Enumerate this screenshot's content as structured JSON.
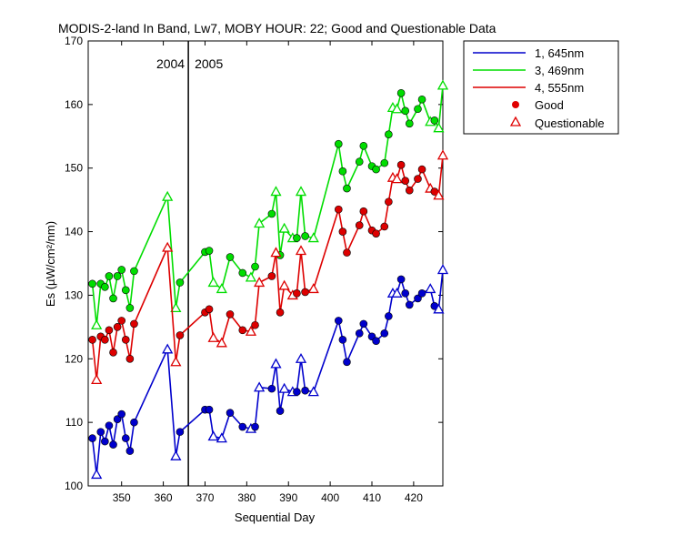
{
  "chart_data": {
    "type": "line",
    "title": "MODIS-2-land In Band,  Lw7, MOBY HOUR: 22;  Good and Questionable Data",
    "xlabel": "Sequential Day",
    "ylabel": "Es (µW/cm²/nm)",
    "xlim": [
      342,
      427
    ],
    "ylim": [
      100,
      170
    ],
    "xticks": [
      350,
      360,
      370,
      380,
      390,
      400,
      410,
      420
    ],
    "yticks": [
      100,
      110,
      120,
      130,
      140,
      150,
      160,
      170
    ],
    "x_tick_labels": [
      "350",
      "360",
      "370",
      "380",
      "390",
      "400",
      "410",
      "420"
    ],
    "y_tick_labels": [
      "100",
      "110",
      "120",
      "130",
      "140",
      "150",
      "160",
      "170"
    ],
    "grid": false,
    "legend_position": "outside-top-right",
    "year_boundary": {
      "x": 366,
      "left_label": "2004",
      "right_label": "2005"
    },
    "legend": {
      "series": [
        "1, 645nm",
        "3, 469nm",
        "4, 555nm"
      ],
      "good_label": "Good",
      "questionable_label": "Questionable",
      "marker_color": "#e00000"
    },
    "x": [
      343,
      344,
      345,
      346,
      347,
      348,
      349,
      350,
      351,
      352,
      353,
      361,
      363,
      364,
      370,
      371,
      372,
      374,
      376,
      379,
      381,
      382,
      383,
      386,
      387,
      388,
      389,
      391,
      392,
      393,
      394,
      396,
      402,
      403,
      404,
      407,
      408,
      410,
      411,
      413,
      414,
      415,
      416,
      417,
      418,
      419,
      421,
      422,
      424,
      425,
      426,
      427
    ],
    "quality": [
      "g",
      "q",
      "g",
      "g",
      "g",
      "g",
      "g",
      "g",
      "g",
      "g",
      "g",
      "q",
      "q",
      "g",
      "g",
      "g",
      "q",
      "q",
      "g",
      "g",
      "q",
      "g",
      "q",
      "g",
      "q",
      "g",
      "q",
      "q",
      "g",
      "q",
      "g",
      "q",
      "g",
      "g",
      "g",
      "g",
      "g",
      "g",
      "g",
      "g",
      "g",
      "q",
      "q",
      "g",
      "g",
      "g",
      "g",
      "g",
      "q",
      "g",
      "q",
      "q"
    ],
    "series": [
      {
        "name": "1, 645nm",
        "color": "#0000cc",
        "values": [
          107.5,
          101.8,
          108.5,
          107.0,
          109.5,
          106.5,
          110.5,
          111.3,
          107.5,
          105.5,
          110.0,
          121.5,
          104.7,
          108.5,
          112.0,
          112.0,
          107.8,
          107.5,
          111.5,
          109.3,
          109.0,
          109.3,
          115.5,
          115.3,
          119.2,
          111.8,
          115.3,
          114.8,
          114.8,
          120.0,
          115.0,
          114.8,
          126.0,
          123.0,
          119.5,
          124.0,
          125.5,
          123.5,
          122.8,
          124.0,
          126.7,
          130.3,
          130.3,
          132.5,
          130.3,
          128.5,
          129.5,
          130.3,
          131.0,
          128.3,
          127.8,
          134.0
        ]
      },
      {
        "name": "3, 469nm",
        "color": "#00dd00",
        "values": [
          131.8,
          125.3,
          131.8,
          131.3,
          133.0,
          129.5,
          133.0,
          134.0,
          130.8,
          128.0,
          133.8,
          145.5,
          128.0,
          132.0,
          136.8,
          137.0,
          132.0,
          131.0,
          136.0,
          133.5,
          132.8,
          134.5,
          141.3,
          142.8,
          146.3,
          136.3,
          140.5,
          139.0,
          139.0,
          146.3,
          139.3,
          139.0,
          153.8,
          149.5,
          146.8,
          151.0,
          153.5,
          150.3,
          149.8,
          150.8,
          155.3,
          159.5,
          159.3,
          161.8,
          159.0,
          157.0,
          159.3,
          160.8,
          157.3,
          157.5,
          156.3,
          163.0
        ]
      },
      {
        "name": "4, 555nm",
        "color": "#dd0000",
        "values": [
          123.0,
          116.7,
          123.5,
          123.0,
          124.5,
          121.0,
          125.0,
          126.0,
          123.0,
          120.0,
          125.5,
          137.5,
          119.5,
          123.7,
          127.3,
          127.8,
          123.3,
          122.5,
          127.0,
          124.5,
          124.3,
          125.3,
          132.0,
          133.0,
          136.7,
          127.3,
          131.5,
          130.0,
          130.3,
          137.0,
          130.5,
          131.0,
          143.5,
          140.0,
          136.7,
          141.0,
          143.2,
          140.2,
          139.7,
          140.8,
          144.7,
          148.5,
          148.3,
          150.5,
          148.0,
          146.5,
          148.3,
          149.8,
          146.8,
          146.3,
          145.7,
          152.0
        ]
      }
    ]
  }
}
